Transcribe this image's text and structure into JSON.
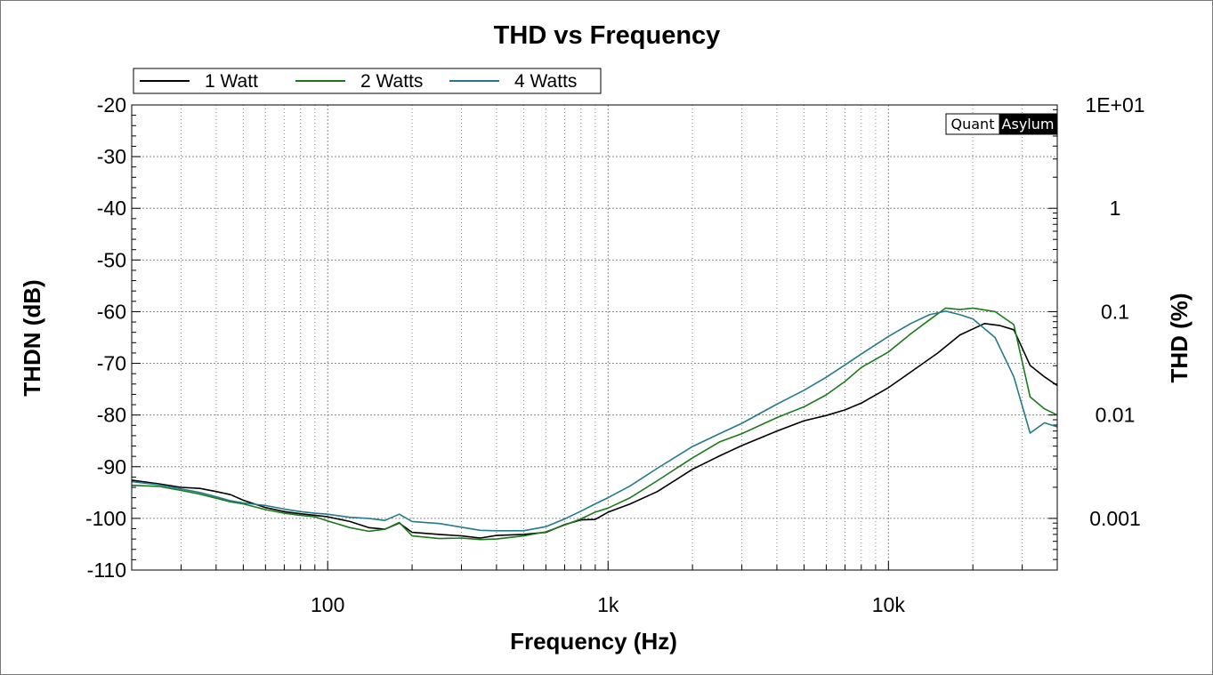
{
  "chart_data": {
    "type": "line",
    "title": "THD vs Frequency",
    "xlabel": "Frequency (Hz)",
    "ylabel": "THDN (dB)",
    "ylabel_right": "THD (%)",
    "x_scale": "log",
    "xlim": [
      20,
      40000
    ],
    "ylim": [
      -110,
      -20
    ],
    "x_ticks": [
      {
        "value": 100,
        "label": "100"
      },
      {
        "value": 1000,
        "label": "1k"
      },
      {
        "value": 10000,
        "label": "10k"
      }
    ],
    "y_ticks": [
      -20,
      -30,
      -40,
      -50,
      -60,
      -70,
      -80,
      -90,
      -100,
      -110
    ],
    "y_ticks_labels": [
      "-20",
      "-30",
      "-40",
      "-50",
      "-60",
      "-70",
      "-80",
      "-90",
      "-100",
      "-110"
    ],
    "right_ticks": [
      {
        "db": -20,
        "label": "1E+01"
      },
      {
        "db": -40,
        "label": "1"
      },
      {
        "db": -60,
        "label": "0.1"
      },
      {
        "db": -80,
        "label": "0.01"
      },
      {
        "db": -100,
        "label": "0.001"
      }
    ],
    "grid": true,
    "legend_position": "top-left",
    "watermark": {
      "left": "Quant",
      "right": "Asylum"
    },
    "series": [
      {
        "name": "1 Watt",
        "color": "#000000",
        "x": [
          20,
          25,
          30,
          35,
          40,
          45,
          50,
          60,
          70,
          80,
          90,
          100,
          120,
          140,
          160,
          180,
          200,
          250,
          300,
          350,
          400,
          500,
          600,
          700,
          800,
          900,
          1000,
          1200,
          1500,
          2000,
          2500,
          3000,
          4000,
          5000,
          6000,
          7000,
          8000,
          10000,
          12000,
          15000,
          18000,
          22000,
          25000,
          28000,
          32000,
          36000,
          40000
        ],
        "y": [
          -92.6,
          -93.3,
          -94.0,
          -94.2,
          -94.8,
          -95.4,
          -96.5,
          -97.9,
          -98.7,
          -99.1,
          -99.4,
          -99.7,
          -100.6,
          -101.8,
          -102.1,
          -100.9,
          -102.7,
          -103.1,
          -103.4,
          -103.8,
          -103.3,
          -103.1,
          -102.7,
          -101.2,
          -100.3,
          -100.2,
          -98.8,
          -97.2,
          -94.8,
          -90.5,
          -87.9,
          -85.9,
          -83.1,
          -81.1,
          -80.1,
          -79.0,
          -77.7,
          -74.7,
          -71.7,
          -68.0,
          -64.5,
          -62.3,
          -62.7,
          -63.5,
          -70.4,
          -72.6,
          -74.3
        ]
      },
      {
        "name": "2 Watts",
        "color": "#1a7a1a",
        "x": [
          20,
          25,
          30,
          35,
          40,
          45,
          50,
          60,
          70,
          80,
          90,
          100,
          120,
          140,
          160,
          180,
          200,
          250,
          300,
          350,
          400,
          500,
          600,
          700,
          800,
          900,
          1000,
          1200,
          1500,
          2000,
          2500,
          3000,
          4000,
          5000,
          6000,
          7000,
          8000,
          10000,
          12000,
          14000,
          16000,
          18000,
          20000,
          24000,
          28000,
          32000,
          36000,
          40000
        ],
        "y": [
          -93.6,
          -93.8,
          -94.6,
          -95.3,
          -96.1,
          -96.8,
          -97.2,
          -98.3,
          -99.0,
          -99.4,
          -99.7,
          -100.5,
          -101.8,
          -102.5,
          -102.1,
          -100.8,
          -103.4,
          -103.9,
          -103.8,
          -104.1,
          -104.0,
          -103.4,
          -102.6,
          -101.3,
          -100.1,
          -98.8,
          -98.0,
          -96.0,
          -92.7,
          -88.3,
          -85.2,
          -83.6,
          -80.5,
          -78.4,
          -76.1,
          -73.5,
          -70.8,
          -67.8,
          -64.3,
          -61.6,
          -59.3,
          -59.6,
          -59.3,
          -60.0,
          -62.5,
          -76.5,
          -78.8,
          -80.0
        ]
      },
      {
        "name": "4 Watts",
        "color": "#237a8a",
        "x": [
          20,
          25,
          30,
          35,
          40,
          45,
          50,
          60,
          70,
          80,
          90,
          100,
          120,
          140,
          160,
          180,
          200,
          250,
          300,
          350,
          400,
          500,
          600,
          700,
          800,
          900,
          1000,
          1200,
          1500,
          2000,
          2500,
          3000,
          4000,
          5000,
          6000,
          7000,
          8000,
          10000,
          12000,
          14000,
          16000,
          18000,
          20000,
          24000,
          28000,
          32000,
          36000,
          40000
        ],
        "y": [
          -92.9,
          -93.5,
          -94.3,
          -95.0,
          -95.8,
          -96.6,
          -97.0,
          -97.5,
          -98.2,
          -98.7,
          -99.0,
          -99.2,
          -99.8,
          -100.0,
          -100.4,
          -99.2,
          -100.6,
          -101.0,
          -101.7,
          -102.3,
          -102.4,
          -102.4,
          -101.6,
          -100.1,
          -98.6,
          -97.2,
          -96.0,
          -93.7,
          -90.3,
          -86.1,
          -83.6,
          -81.6,
          -77.9,
          -75.2,
          -72.7,
          -70.3,
          -68.2,
          -64.8,
          -62.3,
          -60.6,
          -59.9,
          -60.6,
          -61.4,
          -65.0,
          -72.6,
          -83.5,
          -81.5,
          -82.3
        ]
      }
    ]
  }
}
